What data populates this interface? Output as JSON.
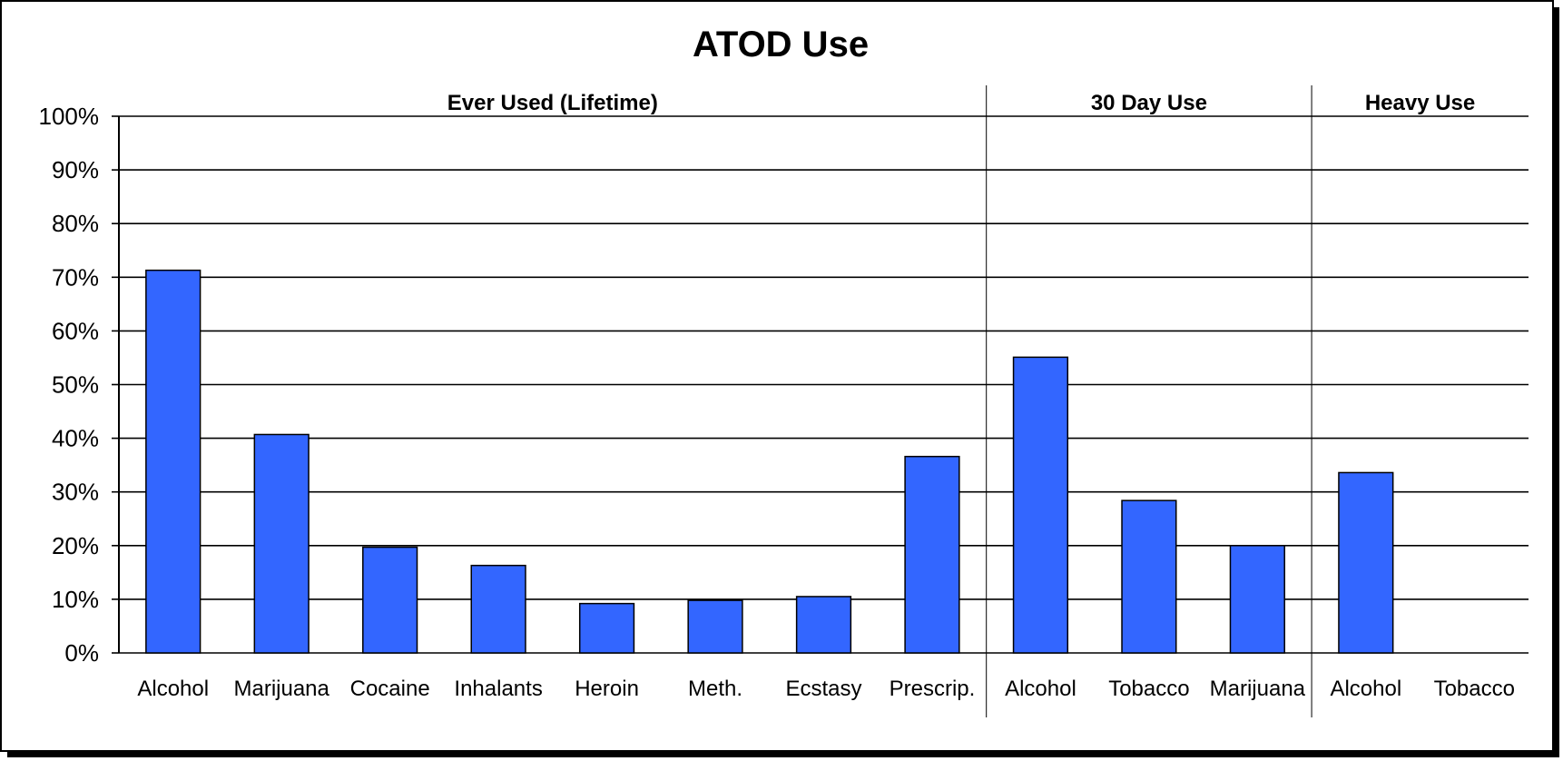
{
  "chart_data": {
    "type": "bar",
    "title": "ATOD Use",
    "xlabel": "",
    "ylabel": "",
    "ylim": [
      0,
      100
    ],
    "yticks": [
      "0%",
      "10%",
      "20%",
      "30%",
      "40%",
      "50%",
      "60%",
      "70%",
      "80%",
      "90%",
      "100%"
    ],
    "grid": true,
    "bar_color": "#3366FF",
    "groups": [
      {
        "label": "Ever Used (Lifetime)",
        "start": 0,
        "end": 7
      },
      {
        "label": "30 Day Use",
        "start": 8,
        "end": 10
      },
      {
        "label": "Heavy Use",
        "start": 11,
        "end": 12
      }
    ],
    "categories": [
      "Alcohol",
      "Marijuana",
      "Cocaine",
      "Inhalants",
      "Heroin",
      "Meth.",
      "Ecstasy",
      "Prescrip.",
      "Alcohol",
      "Tobacco",
      "Marijuana",
      "Alcohol",
      "Tobacco"
    ],
    "values": [
      71.3,
      40.7,
      19.7,
      16.3,
      9.2,
      9.8,
      10.5,
      36.6,
      55.1,
      28.4,
      20.0,
      33.6,
      0
    ]
  }
}
